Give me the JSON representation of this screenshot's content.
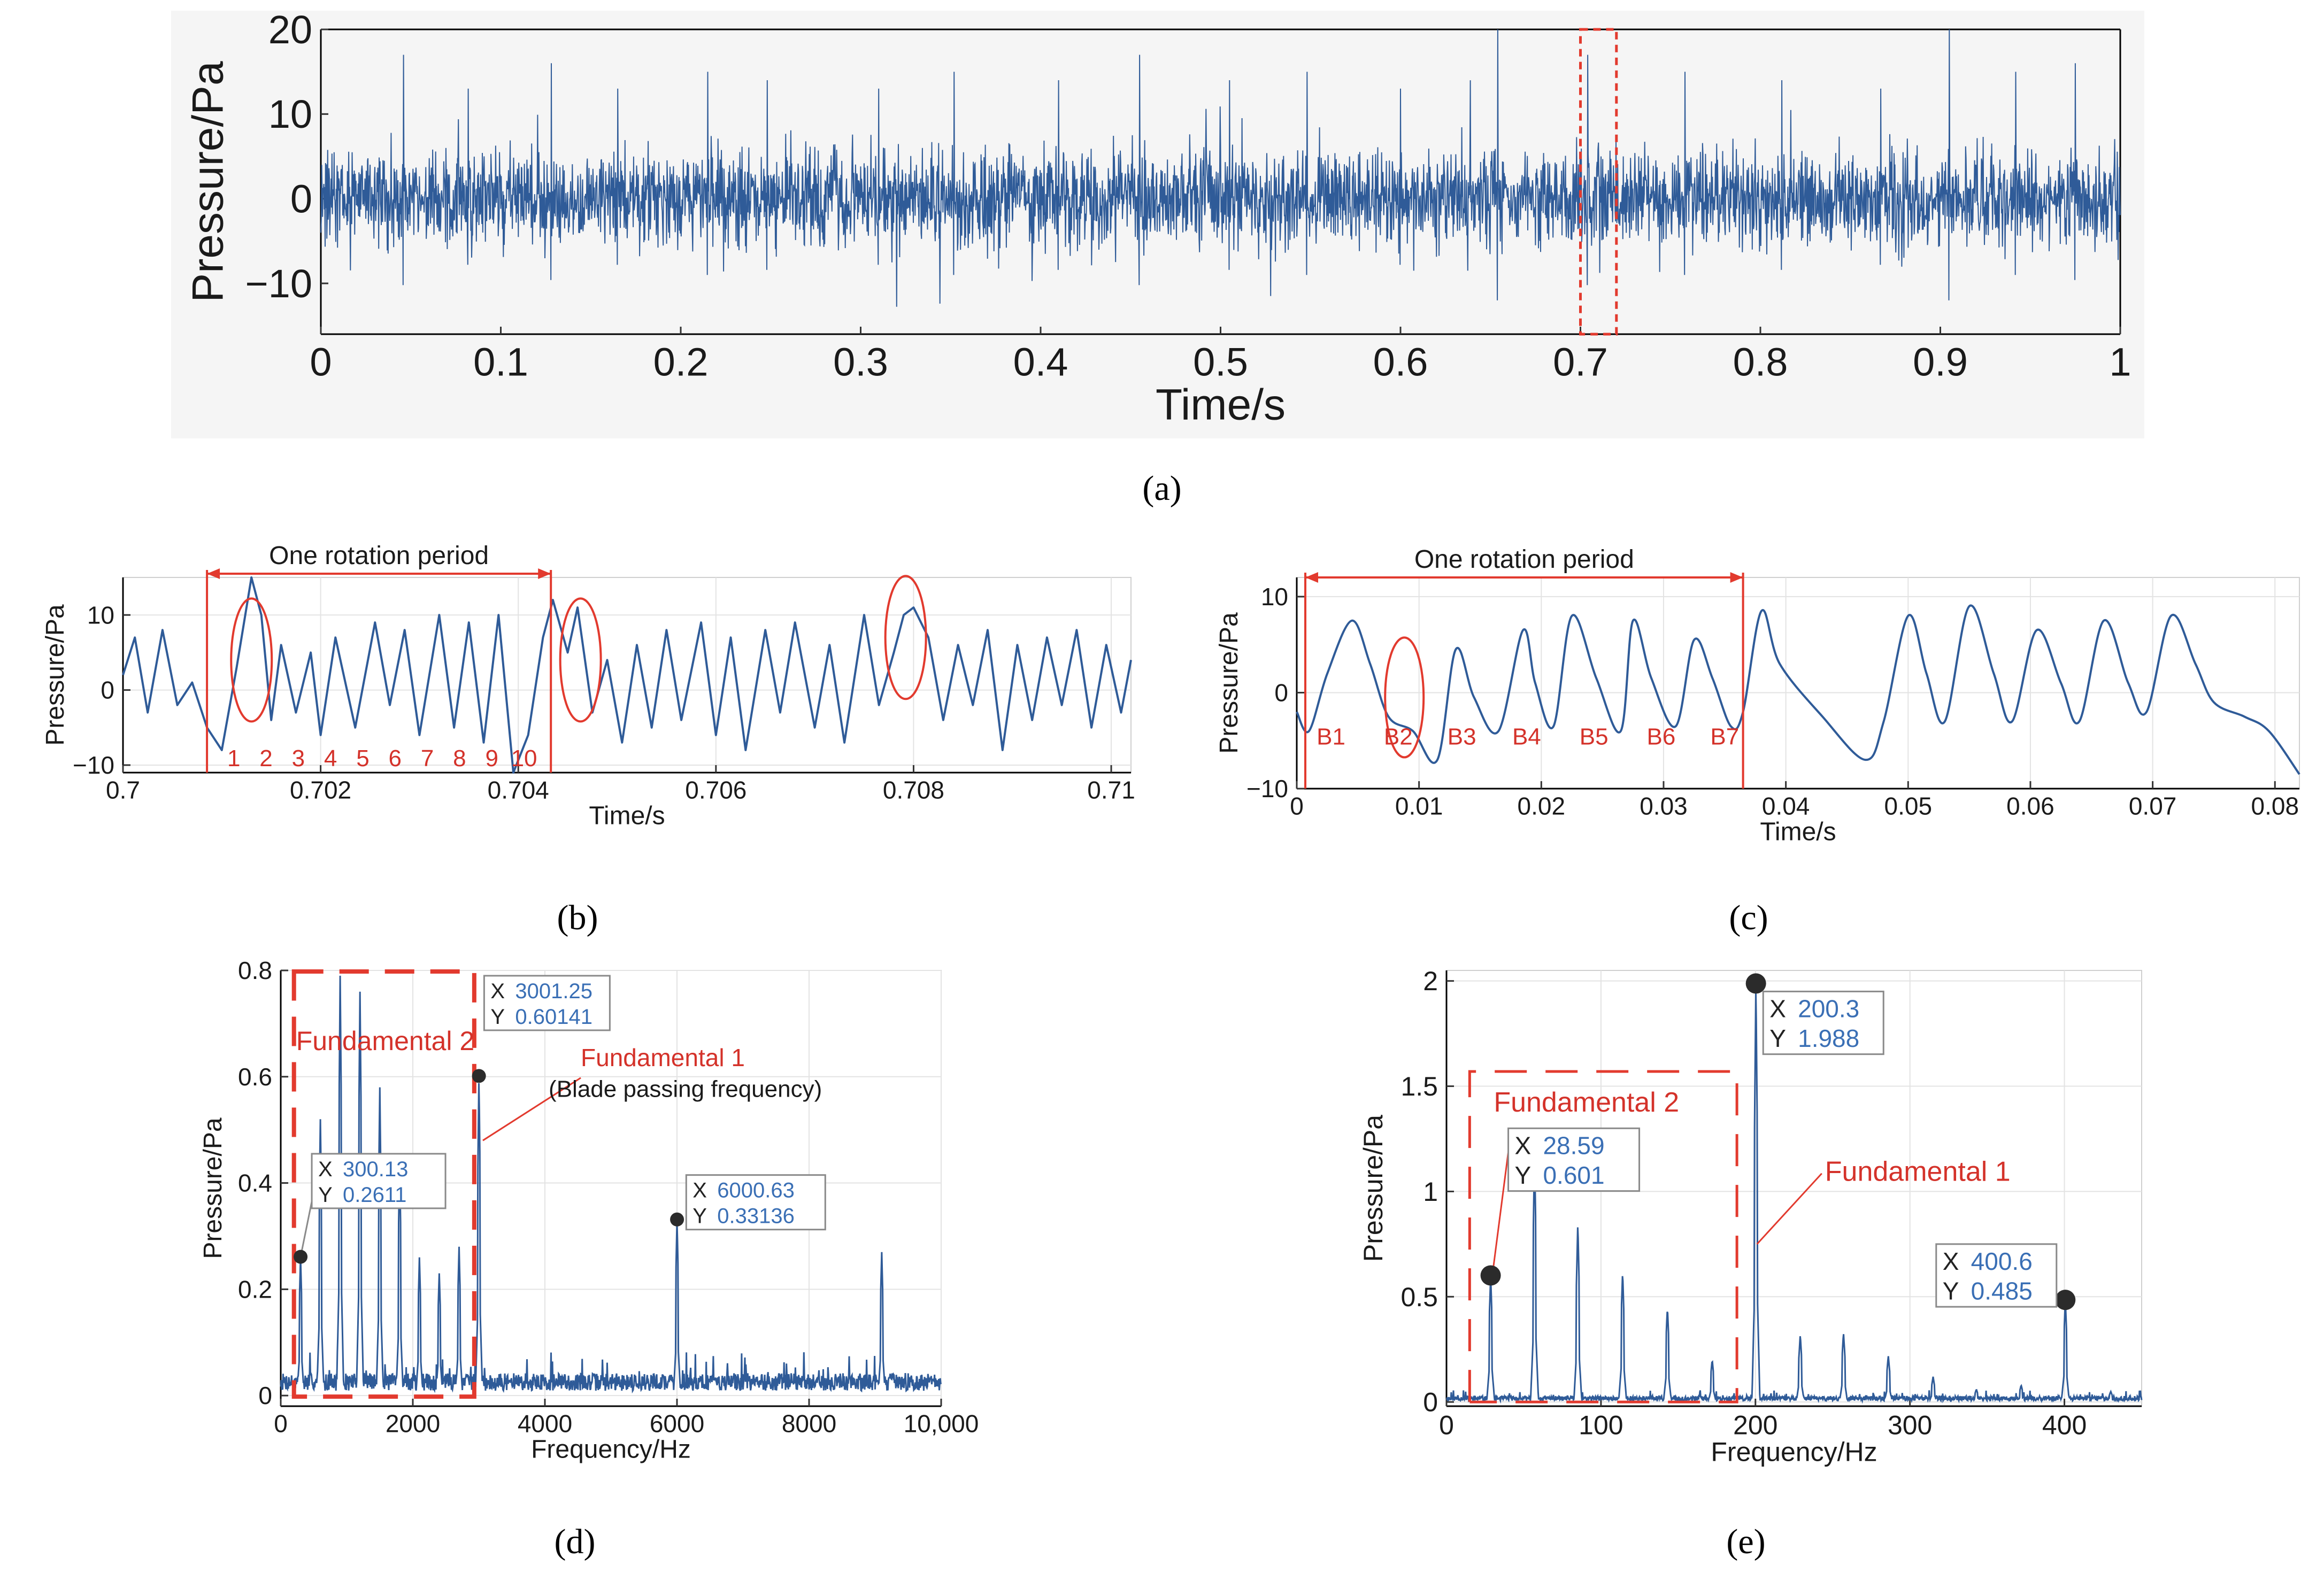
{
  "panels": {
    "a": "(a)",
    "b": "(b)",
    "c": "(c)",
    "d": "(d)",
    "e": "(e)"
  },
  "colors": {
    "series": "#2f5b98",
    "annotation": "#e23a2e",
    "datatip_value": "#3a6fb5",
    "marker": "#2b2b2b"
  },
  "chart_data": [
    {
      "id": "a",
      "type": "line",
      "xlabel": "Time/s",
      "ylabel": "Pressure/Pa",
      "xlim": [
        0,
        1
      ],
      "ylim": [
        -16,
        20
      ],
      "xticks": [
        0,
        0.1,
        0.2,
        0.3,
        0.4,
        0.5,
        0.6,
        0.7,
        0.8,
        0.9,
        1
      ],
      "xticklabels": [
        "0",
        "0.1",
        "0.2",
        "0.3",
        "0.4",
        "0.5",
        "0.6",
        "0.7",
        "0.8",
        "0.9",
        "1"
      ],
      "yticks": [
        -10,
        0,
        10,
        20
      ],
      "yticklabels": [
        "−10",
        "0",
        "10",
        "20"
      ],
      "grid": false,
      "series": [
        {
          "style": "dense noise-like pressure signal",
          "x_range": [
            0,
            1
          ],
          "typical_amplitude": 7,
          "max": 20,
          "min": -15,
          "spike_times": [
            0.046,
            0.082,
            0.128,
            0.165,
            0.215,
            0.248,
            0.31,
            0.352,
            0.41,
            0.455,
            0.505,
            0.548,
            0.6,
            0.654,
            0.704,
            0.758,
            0.812,
            0.867,
            0.905,
            0.942,
            0.975
          ],
          "spike_values": [
            17,
            13,
            16,
            13,
            15,
            14,
            13,
            15,
            14,
            17,
            14,
            15,
            13,
            20,
            17,
            15,
            14,
            13,
            20,
            15,
            16
          ]
        }
      ],
      "annotations": [
        {
          "type": "dashed-rectangle",
          "x": [
            0.7,
            0.72
          ],
          "y": [
            -16,
            20
          ]
        }
      ]
    },
    {
      "id": "b",
      "type": "line",
      "xlabel": "Time/s",
      "ylabel": "Pressure/Pa",
      "xlim": [
        0.7,
        0.7102
      ],
      "ylim": [
        -11,
        15
      ],
      "xticks": [
        0.7,
        0.702,
        0.704,
        0.706,
        0.708,
        0.71
      ],
      "xticklabels": [
        "0.7",
        "0.702",
        "0.704",
        "0.706",
        "0.708",
        "0.71"
      ],
      "yticks": [
        -10,
        0,
        10
      ],
      "yticklabels": [
        "−10",
        "0",
        "10"
      ],
      "grid": true,
      "x": [
        0.7,
        0.70012,
        0.70025,
        0.7004,
        0.70055,
        0.7007,
        0.70085,
        0.701,
        0.70115,
        0.7013,
        0.7014,
        0.7015,
        0.7016,
        0.70175,
        0.7019,
        0.702,
        0.70215,
        0.70235,
        0.70255,
        0.7027,
        0.70285,
        0.703,
        0.7032,
        0.70335,
        0.7035,
        0.70365,
        0.7038,
        0.70395,
        0.7041,
        0.70425,
        0.70435,
        0.7045,
        0.7046,
        0.70475,
        0.7049,
        0.70505,
        0.7052,
        0.70535,
        0.7055,
        0.70565,
        0.70585,
        0.706,
        0.70615,
        0.7063,
        0.7065,
        0.70665,
        0.7068,
        0.707,
        0.70715,
        0.7073,
        0.7075,
        0.70765,
        0.7078,
        0.7079,
        0.708,
        0.70815,
        0.7083,
        0.70845,
        0.7086,
        0.70875,
        0.7089,
        0.70905,
        0.7092,
        0.70935,
        0.7095,
        0.70965,
        0.7098,
        0.70995,
        0.7101,
        0.7102
      ],
      "y": [
        2,
        7,
        -3,
        8,
        -2,
        1,
        -5,
        -8,
        3,
        15,
        10,
        -4,
        6,
        -3,
        5,
        -6,
        7,
        -5,
        9,
        -2,
        8,
        -6,
        10,
        -5,
        9,
        -7,
        10,
        -11,
        -6,
        7,
        12,
        5,
        11,
        -3,
        4,
        -7,
        6,
        -5,
        8,
        -4,
        9,
        -6,
        7,
        -8,
        8,
        -3,
        9,
        -5,
        6,
        -7,
        10,
        -2,
        5,
        10,
        11,
        7,
        -4,
        6,
        -2,
        8,
        -8,
        6,
        -4,
        7,
        -2,
        8,
        -5,
        6,
        -3,
        4
      ],
      "annotations": [
        {
          "text": "One rotation period",
          "type": "double-arrow",
          "x": [
            0.70085,
            0.70433
          ],
          "y": 15.5
        },
        {
          "type": "vline",
          "x": 0.70085
        },
        {
          "type": "vline",
          "x": 0.70433
        },
        {
          "type": "ellipse",
          "cx": 0.7013,
          "cy": 4
        },
        {
          "type": "ellipse",
          "cx": 0.70463,
          "cy": 4
        },
        {
          "type": "ellipse",
          "cx": 0.70792,
          "cy": 7
        },
        {
          "type": "blade-numbers",
          "labels": [
            "1",
            "2",
            "3",
            "4",
            "5",
            "6",
            "7",
            "8",
            "9",
            "10"
          ],
          "y": -9
        }
      ]
    },
    {
      "id": "c",
      "type": "line",
      "xlabel": "Time/s",
      "ylabel": "Pressure/Pa",
      "xlim": [
        0,
        0.082
      ],
      "ylim": [
        -10,
        12
      ],
      "xticks": [
        0,
        0.01,
        0.02,
        0.03,
        0.04,
        0.05,
        0.06,
        0.07,
        0.08
      ],
      "xticklabels": [
        "0",
        "0.01",
        "0.02",
        "0.03",
        "0.04",
        "0.05",
        "0.06",
        "0.07",
        "0.08"
      ],
      "yticks": [
        -10,
        0,
        10
      ],
      "yticklabels": [
        "−10",
        "0",
        "10"
      ],
      "grid": true,
      "x": [
        0,
        0.001,
        0.0025,
        0.0045,
        0.006,
        0.0075,
        0.0095,
        0.0115,
        0.013,
        0.0145,
        0.0165,
        0.0185,
        0.0195,
        0.021,
        0.0225,
        0.0245,
        0.0265,
        0.0275,
        0.029,
        0.031,
        0.0325,
        0.034,
        0.0355,
        0.0365,
        0.038,
        0.0395,
        0.043,
        0.0465,
        0.048,
        0.05,
        0.0515,
        0.053,
        0.055,
        0.057,
        0.0585,
        0.0605,
        0.0625,
        0.064,
        0.066,
        0.068,
        0.0695,
        0.0715,
        0.0735,
        0.075,
        0.0775,
        0.0795,
        0.082
      ],
      "y": [
        -2,
        -4,
        2,
        7.5,
        3,
        -2.5,
        -4,
        -7,
        4.5,
        -0.5,
        -4,
        6.5,
        1,
        -3.5,
        8,
        1.5,
        -4,
        7.5,
        1.5,
        -3.5,
        5.5,
        1.5,
        -3.5,
        -2,
        8.5,
        3,
        -2.5,
        -7,
        -3,
        8,
        2,
        -3,
        9,
        2,
        -3,
        6.5,
        1,
        -3,
        7.5,
        1,
        -2,
        8,
        3,
        -1,
        -2.5,
        -4,
        -8.5
      ],
      "annotations": [
        {
          "text": "One rotation period",
          "type": "double-arrow",
          "x": [
            0.0007,
            0.0365
          ],
          "y": 12
        },
        {
          "type": "vline",
          "x": 0.0007
        },
        {
          "type": "vline",
          "x": 0.0365
        },
        {
          "type": "ellipse",
          "cx": 0.0088,
          "cy": -0.5
        },
        {
          "type": "blade-labels",
          "labels": [
            "B1",
            "B2",
            "B3",
            "B4",
            "B5",
            "B6",
            "B7"
          ],
          "x": [
            0.0028,
            0.0083,
            0.0135,
            0.0188,
            0.0243,
            0.0298,
            0.035
          ],
          "y": -4.5
        }
      ]
    },
    {
      "id": "d",
      "type": "line",
      "xlabel": "Frequency/Hz",
      "ylabel": "Pressure/Pa",
      "xlim": [
        0,
        10000
      ],
      "ylim": [
        -0.02,
        0.8
      ],
      "xticks": [
        0,
        2000,
        4000,
        6000,
        8000,
        10000
      ],
      "xticklabels": [
        "0",
        "2000",
        "4000",
        "6000",
        "8000",
        "10,000"
      ],
      "yticks": [
        0,
        0.2,
        0.4,
        0.6,
        0.8
      ],
      "yticklabels": [
        "0",
        "0.2",
        "0.4",
        "0.6",
        "0.8"
      ],
      "grid": true,
      "peaks_x": [
        300,
        600,
        900,
        1200,
        1500,
        1800,
        2100,
        2400,
        2700,
        3001.25,
        6000.63,
        9100
      ],
      "peaks_y": [
        0.2611,
        0.52,
        0.79,
        0.76,
        0.58,
        0.44,
        0.26,
        0.23,
        0.28,
        0.60141,
        0.33136,
        0.27
      ],
      "noise_floor": 0.03,
      "annotations": [
        {
          "text": "Fundamental 2",
          "type": "dashed-rectangle",
          "x": [
            200,
            2930
          ],
          "y": [
            0,
            0.8
          ]
        },
        {
          "text": "Fundamental 1",
          "x": 4300,
          "y": 0.62
        },
        {
          "text": "(Blade passing frequency)",
          "x": 4300,
          "y": 0.57
        }
      ],
      "datatips": [
        {
          "x_text": "300.13",
          "y_text": "0.2611",
          "x": 300.13,
          "y": 0.2611
        },
        {
          "x_text": "3001.25",
          "y_text": "0.60141",
          "x": 3001.25,
          "y": 0.60141
        },
        {
          "x_text": "6000.63",
          "y_text": "0.33136",
          "x": 6000.63,
          "y": 0.33136
        }
      ]
    },
    {
      "id": "e",
      "type": "line",
      "xlabel": "Frequency/Hz",
      "ylabel": "Pressure/Pa",
      "xlim": [
        0,
        450
      ],
      "ylim": [
        -0.02,
        2.05
      ],
      "xticks": [
        0,
        100,
        200,
        300,
        400
      ],
      "xticklabels": [
        "0",
        "100",
        "200",
        "300",
        "400"
      ],
      "yticks": [
        0,
        0.5,
        1,
        1.5,
        2
      ],
      "yticklabels": [
        "0",
        "0.5",
        "1",
        "1.5",
        "2"
      ],
      "grid": true,
      "peaks_x": [
        28.59,
        57,
        85,
        114,
        143,
        172,
        200.3,
        229,
        257,
        286,
        315,
        343,
        372,
        400.6,
        430
      ],
      "peaks_y": [
        0.601,
        1.18,
        0.85,
        0.62,
        0.45,
        0.2,
        1.988,
        0.32,
        0.33,
        0.22,
        0.12,
        0.06,
        0.08,
        0.485,
        0.05
      ],
      "noise_floor": 0.02,
      "annotations": [
        {
          "text": "Fundamental 2",
          "type": "dashed-rectangle",
          "x": [
            15,
            188
          ],
          "y": [
            0,
            1.57
          ]
        },
        {
          "text": "Fundamental 1",
          "x": 245,
          "y": 1.05
        }
      ],
      "datatips": [
        {
          "x_text": "28.59",
          "y_text": "0.601",
          "x": 28.59,
          "y": 0.601
        },
        {
          "x_text": "200.3",
          "y_text": "1.988",
          "x": 200.3,
          "y": 1.988
        },
        {
          "x_text": "400.6",
          "y_text": "0.485",
          "x": 400.6,
          "y": 0.485
        }
      ]
    }
  ]
}
